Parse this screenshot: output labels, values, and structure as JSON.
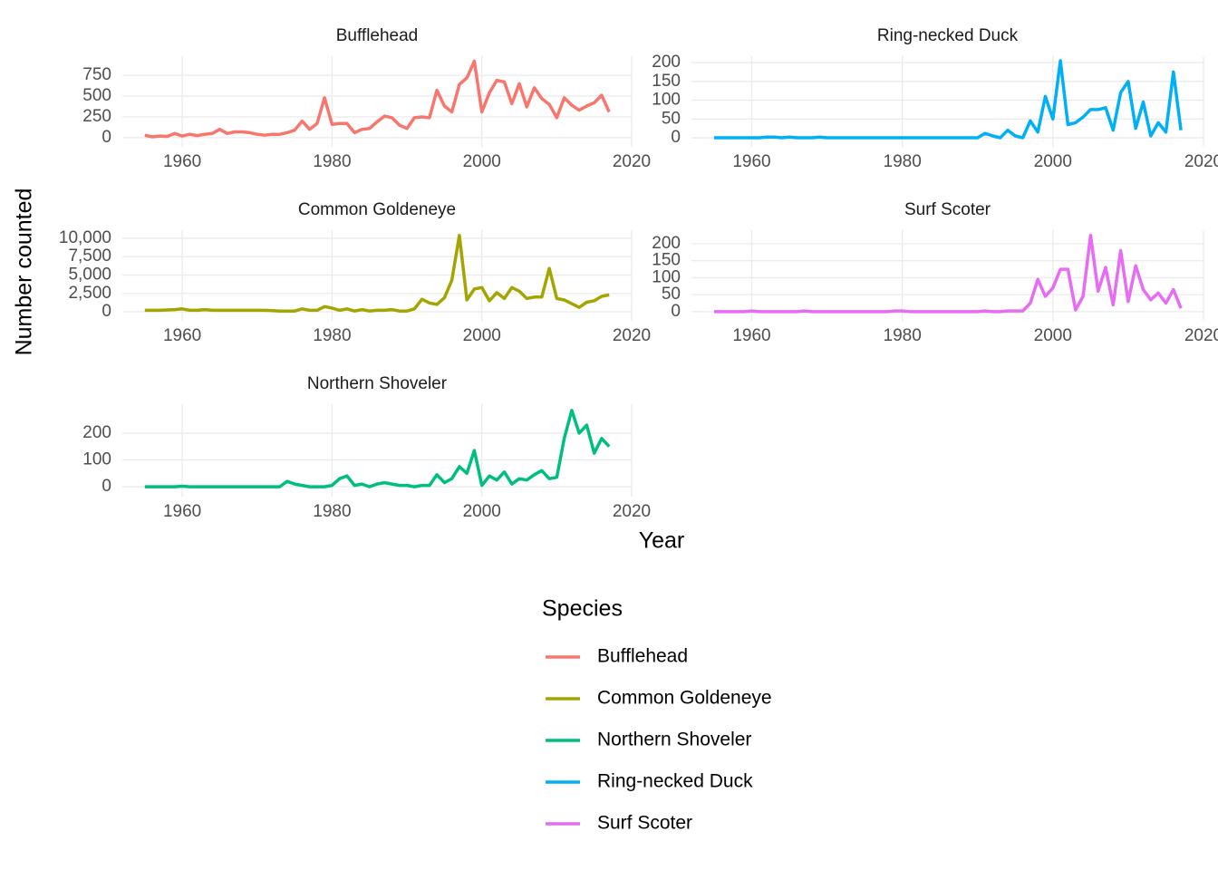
{
  "chart_data": {
    "type": "line",
    "x_label": "Year",
    "y_label": "Number counted",
    "legend_title": "Species",
    "xlim": [
      1952,
      2020
    ],
    "xticks": [
      1960,
      1980,
      2000,
      2020
    ],
    "grid": true,
    "x": [
      1955,
      1956,
      1957,
      1958,
      1959,
      1960,
      1961,
      1962,
      1963,
      1964,
      1965,
      1966,
      1967,
      1968,
      1969,
      1970,
      1971,
      1972,
      1973,
      1974,
      1975,
      1976,
      1977,
      1978,
      1979,
      1980,
      1981,
      1982,
      1983,
      1984,
      1985,
      1986,
      1987,
      1988,
      1989,
      1990,
      1991,
      1992,
      1993,
      1994,
      1995,
      1996,
      1997,
      1998,
      1999,
      2000,
      2001,
      2002,
      2003,
      2004,
      2005,
      2006,
      2007,
      2008,
      2009,
      2010,
      2011,
      2012,
      2013,
      2014,
      2015,
      2016,
      2017
    ],
    "series": [
      {
        "name": "Bufflehead",
        "color": "#F8766D",
        "ylim": [
          -110,
          980
        ],
        "yticks": [
          0,
          250,
          500,
          750
        ],
        "values": [
          30,
          10,
          20,
          15,
          50,
          20,
          40,
          25,
          40,
          50,
          100,
          50,
          70,
          70,
          60,
          40,
          30,
          40,
          40,
          60,
          90,
          200,
          100,
          170,
          480,
          160,
          170,
          170,
          60,
          100,
          110,
          190,
          260,
          240,
          150,
          110,
          240,
          250,
          240,
          570,
          380,
          310,
          640,
          720,
          920,
          310,
          540,
          690,
          670,
          410,
          650,
          370,
          600,
          470,
          400,
          240,
          480,
          390,
          330,
          380,
          420,
          510,
          310
        ]
      },
      {
        "name": "Common Goldeneye",
        "color": "#A3A500",
        "ylim": [
          -1230,
          11100
        ],
        "yticks": [
          0,
          {
            "value": 2500,
            "label": "2,500"
          },
          {
            "value": 5000,
            "label": "5,000"
          },
          {
            "value": 7500,
            "label": "7,500"
          },
          {
            "value": 10000,
            "label": "10,000"
          }
        ],
        "values": [
          200,
          200,
          200,
          250,
          300,
          400,
          200,
          200,
          300,
          200,
          200,
          200,
          200,
          200,
          200,
          200,
          200,
          150,
          100,
          100,
          100,
          400,
          200,
          200,
          700,
          500,
          200,
          400,
          100,
          300,
          100,
          200,
          200,
          300,
          100,
          100,
          400,
          1700,
          1200,
          1000,
          1900,
          4300,
          10400,
          1600,
          3100,
          3300,
          1500,
          2600,
          1800,
          3300,
          2800,
          1800,
          2000,
          2000,
          5900,
          1800,
          1600,
          1100,
          600,
          1300,
          1500,
          2100,
          2300
        ]
      },
      {
        "name": "Northern Shoveler",
        "color": "#00BF7D",
        "ylim": [
          -37,
          308
        ],
        "yticks": [
          0,
          100,
          200
        ],
        "values": [
          0,
          0,
          0,
          0,
          0,
          2,
          0,
          0,
          0,
          0,
          0,
          0,
          0,
          0,
          0,
          0,
          0,
          0,
          0,
          20,
          10,
          5,
          0,
          0,
          0,
          5,
          30,
          40,
          5,
          10,
          0,
          10,
          15,
          10,
          5,
          5,
          0,
          5,
          5,
          45,
          15,
          30,
          75,
          50,
          135,
          5,
          40,
          25,
          55,
          10,
          30,
          25,
          45,
          60,
          30,
          35,
          180,
          285,
          200,
          230,
          125,
          180,
          150
        ]
      },
      {
        "name": "Ring-necked Duck",
        "color": "#00B0F6",
        "ylim": [
          -24,
          217
        ],
        "yticks": [
          0,
          50,
          100,
          150,
          200
        ],
        "values": [
          0,
          0,
          0,
          0,
          0,
          0,
          0,
          2,
          2,
          0,
          2,
          0,
          0,
          0,
          2,
          0,
          0,
          0,
          0,
          0,
          0,
          0,
          0,
          0,
          0,
          0,
          0,
          0,
          0,
          0,
          0,
          0,
          0,
          0,
          0,
          0,
          12,
          5,
          0,
          20,
          5,
          0,
          45,
          15,
          110,
          50,
          205,
          35,
          40,
          55,
          75,
          75,
          80,
          20,
          120,
          150,
          25,
          95,
          5,
          40,
          15,
          175,
          20
        ]
      },
      {
        "name": "Surf Scoter",
        "color": "#E76BF3",
        "ylim": [
          -27,
          240
        ],
        "yticks": [
          0,
          50,
          100,
          150,
          200
        ],
        "values": [
          0,
          0,
          0,
          0,
          0,
          2,
          0,
          0,
          0,
          0,
          0,
          0,
          2,
          0,
          0,
          0,
          0,
          0,
          0,
          0,
          0,
          0,
          0,
          0,
          2,
          2,
          0,
          0,
          0,
          0,
          0,
          0,
          0,
          0,
          0,
          0,
          2,
          0,
          0,
          2,
          2,
          2,
          25,
          95,
          45,
          70,
          125,
          125,
          5,
          45,
          225,
          60,
          130,
          20,
          180,
          30,
          135,
          65,
          35,
          55,
          25,
          65,
          10
        ]
      }
    ]
  }
}
